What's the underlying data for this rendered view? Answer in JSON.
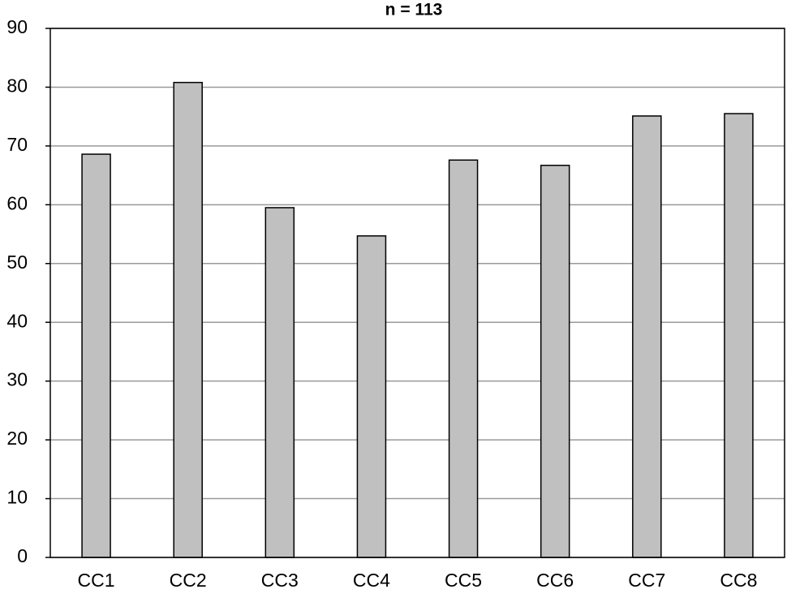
{
  "chart_data": {
    "type": "bar",
    "title": "n = 113",
    "categories": [
      "CC1",
      "CC2",
      "CC3",
      "CC4",
      "CC5",
      "CC6",
      "CC7",
      "CC8"
    ],
    "values": [
      68.6,
      80.8,
      59.5,
      54.7,
      67.6,
      66.7,
      75.1,
      75.5
    ],
    "color": "#c0c0c0",
    "ylim": [
      0,
      90
    ],
    "yticks": [
      0,
      10,
      20,
      30,
      40,
      50,
      60,
      70,
      80,
      90
    ],
    "grid": true
  }
}
